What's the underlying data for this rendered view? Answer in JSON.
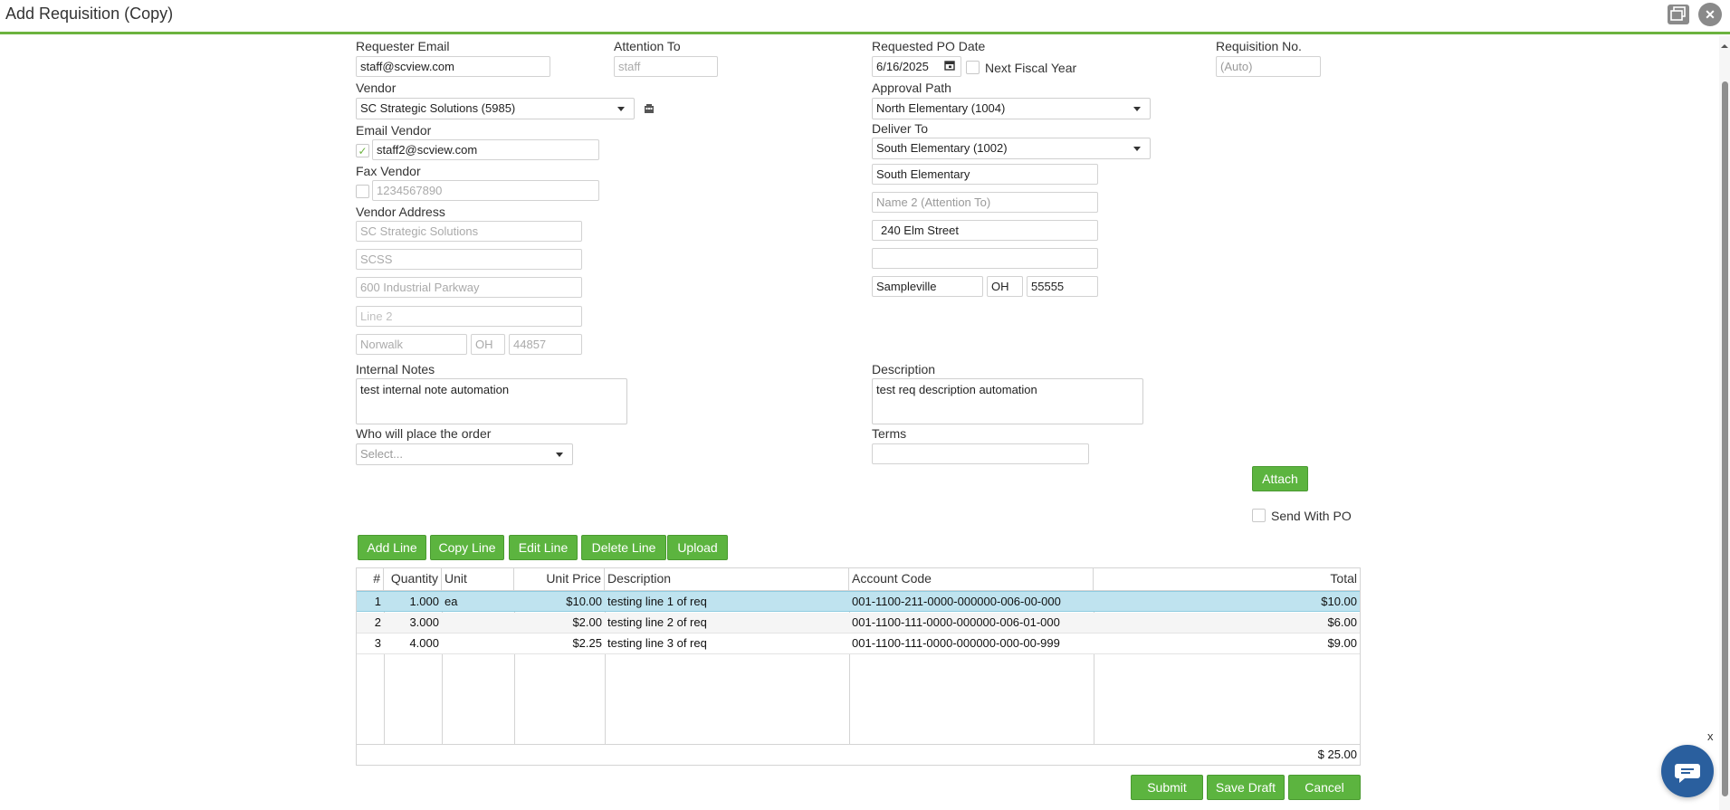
{
  "window": {
    "title": "Add Requisition (Copy)",
    "close_glyph": "✕"
  },
  "form": {
    "requester_email": {
      "label": "Requester Email",
      "value": "staff@scview.com"
    },
    "attention_to": {
      "label": "Attention To",
      "value": "staff"
    },
    "requested_po_date": {
      "label": "Requested PO Date",
      "value": "6/16/2025"
    },
    "next_fiscal_year": {
      "label": "Next Fiscal Year",
      "checked": false
    },
    "requisition_no": {
      "label": "Requisition No.",
      "placeholder": "(Auto)"
    },
    "vendor": {
      "label": "Vendor",
      "value": "SC Strategic Solutions (5985)"
    },
    "approval_path": {
      "label": "Approval Path",
      "value": "North Elementary (1004)"
    },
    "email_vendor": {
      "label": "Email Vendor",
      "checked": true,
      "value": "staff2@scview.com"
    },
    "deliver_to": {
      "label": "Deliver To",
      "value": "South Elementary (1002)",
      "name": "South Elementary",
      "name2_placeholder": "Name 2 (Attention To)",
      "line1": "240 Elm Street",
      "line2": "",
      "city": "Sampleville",
      "state": "OH",
      "zip": "55555"
    },
    "fax_vendor": {
      "label": "Fax Vendor",
      "checked": false,
      "value": "1234567890"
    },
    "vendor_address": {
      "label": "Vendor Address",
      "name": "SC Strategic Solutions",
      "name2": "SCSS",
      "line1": "600 Industrial Parkway",
      "line2_placeholder": "Line 2",
      "city": "Norwalk",
      "state": "OH",
      "zip": "44857"
    },
    "internal_notes": {
      "label": "Internal Notes",
      "value": "test internal note automation"
    },
    "description": {
      "label": "Description",
      "value": "test req description automation"
    },
    "who_places_order": {
      "label": "Who will place the order",
      "placeholder": "Select..."
    },
    "terms": {
      "label": "Terms",
      "value": ""
    },
    "attach_label": "Attach",
    "send_with_po": {
      "label": "Send With PO",
      "checked": false
    }
  },
  "toolbar": {
    "add_line": "Add Line",
    "copy_line": "Copy Line",
    "edit_line": "Edit Line",
    "delete_line": "Delete Line",
    "upload": "Upload"
  },
  "lines": {
    "columns": [
      "#",
      "Quantity",
      "Unit",
      "Unit Price",
      "Description",
      "Account Code",
      "Total"
    ],
    "rows": [
      {
        "num": "1",
        "qty": "1.000",
        "unit": "ea",
        "price": "$10.00",
        "desc": "testing line 1 of req",
        "account": "001-1100-211-0000-000000-006-00-000",
        "total": "$10.00",
        "selected": true
      },
      {
        "num": "2",
        "qty": "3.000",
        "unit": "",
        "price": "$2.00",
        "desc": "testing line 2 of req",
        "account": "001-1100-111-0000-000000-006-01-000",
        "total": "$6.00",
        "selected": false
      },
      {
        "num": "3",
        "qty": "4.000",
        "unit": "",
        "price": "$2.25",
        "desc": "testing line 3 of req",
        "account": "001-1100-111-0000-000000-000-00-999",
        "total": "$9.00",
        "selected": false
      }
    ],
    "grand_total": "$ 25.00"
  },
  "actions": {
    "submit": "Submit",
    "save_draft": "Save Draft",
    "cancel": "Cancel"
  },
  "chat": {
    "dismiss_glyph": "x"
  },
  "colors": {
    "accent": "#5cb43f",
    "selected_row": "#bfe3ef",
    "chat": "#2a5f9e"
  }
}
